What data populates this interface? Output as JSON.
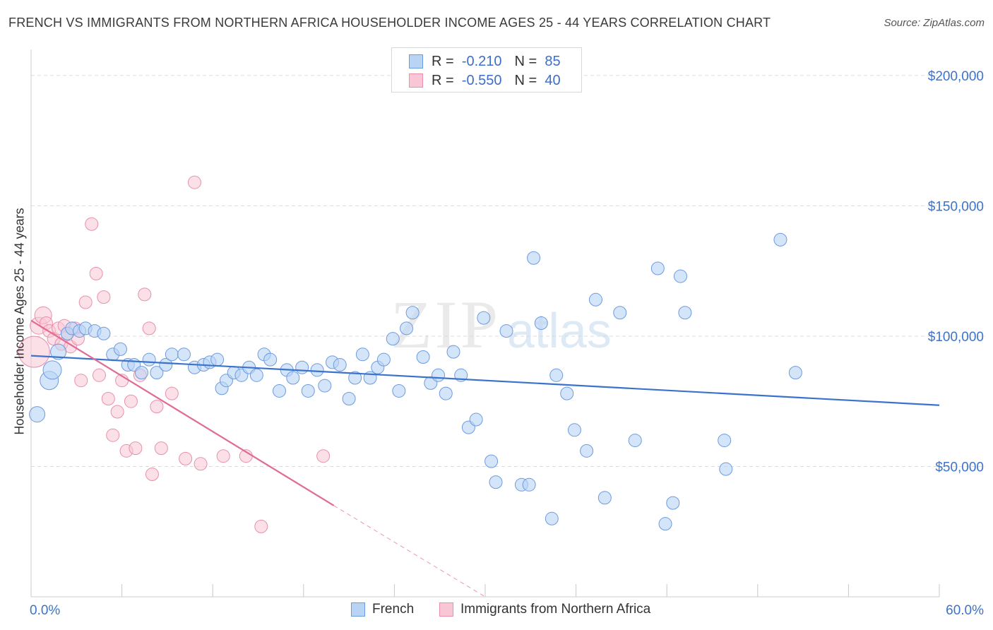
{
  "title": "FRENCH VS IMMIGRANTS FROM NORTHERN AFRICA HOUSEHOLDER INCOME AGES 25 - 44 YEARS CORRELATION CHART",
  "source": "Source: ZipAtlas.com",
  "watermark": {
    "zip": "ZIP",
    "atlas": "atlas"
  },
  "legend": {
    "r_label": "R =",
    "n_label": "N =",
    "rows": [
      {
        "r": "-0.210",
        "n": "85",
        "fill": "#b9d3f5",
        "stroke": "#6b9be0"
      },
      {
        "r": "-0.550",
        "n": "40",
        "fill": "#f9c6d6",
        "stroke": "#e890ab"
      }
    ]
  },
  "bottom_legend": [
    "French",
    "Immigrants from Northern Africa"
  ],
  "chart_data": {
    "type": "scatter",
    "ylabel": "Householder Income Ages 25 - 44 years",
    "xlim": [
      0,
      60
    ],
    "ylim": [
      0,
      210000
    ],
    "x_tick_labels": [
      "0.0%",
      "60.0%"
    ],
    "y_tick_labels": [
      "$200,000",
      "$150,000",
      "$100,000",
      "$50,000"
    ],
    "y_ticks": [
      200000,
      150000,
      100000,
      50000
    ],
    "grid": true,
    "colors": {
      "french": "#3b73cc",
      "french_fill": "#b9d3f5",
      "immig": "#e06b96",
      "immig_fill": "#f9c6d6",
      "axis_text": "#3b73cc"
    },
    "series": [
      {
        "name": "French",
        "points": [
          [
            0.4,
            70000
          ],
          [
            1.2,
            83000
          ],
          [
            1.4,
            87000
          ],
          [
            1.8,
            94000
          ],
          [
            2.4,
            101000
          ],
          [
            2.7,
            103000
          ],
          [
            3.2,
            102000
          ],
          [
            3.6,
            103000
          ],
          [
            4.2,
            102000
          ],
          [
            4.8,
            101000
          ],
          [
            5.4,
            93000
          ],
          [
            5.9,
            95000
          ],
          [
            6.4,
            89000
          ],
          [
            6.8,
            89000
          ],
          [
            7.3,
            86000
          ],
          [
            7.8,
            91000
          ],
          [
            8.3,
            86000
          ],
          [
            8.9,
            89000
          ],
          [
            9.3,
            93000
          ],
          [
            10.1,
            93000
          ],
          [
            10.8,
            88000
          ],
          [
            11.4,
            89000
          ],
          [
            11.8,
            90000
          ],
          [
            12.3,
            91000
          ],
          [
            12.6,
            80000
          ],
          [
            12.9,
            83000
          ],
          [
            13.4,
            86000
          ],
          [
            13.9,
            85000
          ],
          [
            14.4,
            88000
          ],
          [
            14.9,
            85000
          ],
          [
            15.4,
            93000
          ],
          [
            15.8,
            91000
          ],
          [
            16.4,
            79000
          ],
          [
            16.9,
            87000
          ],
          [
            17.3,
            84000
          ],
          [
            17.9,
            88000
          ],
          [
            18.3,
            79000
          ],
          [
            18.9,
            87000
          ],
          [
            19.4,
            81000
          ],
          [
            19.9,
            90000
          ],
          [
            20.4,
            89000
          ],
          [
            21.0,
            76000
          ],
          [
            21.4,
            84000
          ],
          [
            21.9,
            93000
          ],
          [
            22.4,
            84000
          ],
          [
            22.9,
            88000
          ],
          [
            23.3,
            91000
          ],
          [
            23.9,
            99000
          ],
          [
            24.3,
            79000
          ],
          [
            24.8,
            103000
          ],
          [
            25.2,
            109000
          ],
          [
            25.9,
            92000
          ],
          [
            26.4,
            82000
          ],
          [
            26.9,
            85000
          ],
          [
            27.4,
            78000
          ],
          [
            27.9,
            94000
          ],
          [
            28.4,
            85000
          ],
          [
            28.9,
            65000
          ],
          [
            29.4,
            68000
          ],
          [
            29.9,
            107000
          ],
          [
            30.4,
            52000
          ],
          [
            30.7,
            44000
          ],
          [
            31.4,
            102000
          ],
          [
            32.4,
            43000
          ],
          [
            32.9,
            43000
          ],
          [
            33.2,
            130000
          ],
          [
            33.7,
            105000
          ],
          [
            34.4,
            30000
          ],
          [
            34.7,
            85000
          ],
          [
            35.4,
            78000
          ],
          [
            35.9,
            64000
          ],
          [
            36.7,
            56000
          ],
          [
            37.3,
            114000
          ],
          [
            37.9,
            38000
          ],
          [
            38.9,
            109000
          ],
          [
            39.9,
            60000
          ],
          [
            41.4,
            126000
          ],
          [
            41.9,
            28000
          ],
          [
            42.4,
            36000
          ],
          [
            42.9,
            123000
          ],
          [
            43.2,
            109000
          ],
          [
            45.8,
            60000
          ],
          [
            45.9,
            49000
          ],
          [
            49.5,
            137000
          ],
          [
            50.5,
            86000
          ]
        ],
        "trend": {
          "from": [
            0,
            92500
          ],
          "to": [
            60,
            73500
          ]
        }
      },
      {
        "name": "Immigrants from Northern Africa",
        "points": [
          [
            0.2,
            94000
          ],
          [
            0.5,
            104000
          ],
          [
            0.8,
            108000
          ],
          [
            1.0,
            105000
          ],
          [
            1.2,
            102000
          ],
          [
            1.5,
            99000
          ],
          [
            1.8,
            103000
          ],
          [
            2.0,
            97000
          ],
          [
            2.2,
            104000
          ],
          [
            2.4,
            101000
          ],
          [
            2.6,
            96000
          ],
          [
            2.9,
            103000
          ],
          [
            3.1,
            99000
          ],
          [
            3.3,
            83000
          ],
          [
            3.6,
            113000
          ],
          [
            4.0,
            143000
          ],
          [
            4.3,
            124000
          ],
          [
            4.5,
            85000
          ],
          [
            4.8,
            115000
          ],
          [
            5.1,
            76000
          ],
          [
            5.4,
            62000
          ],
          [
            5.7,
            71000
          ],
          [
            6.0,
            83000
          ],
          [
            6.3,
            56000
          ],
          [
            6.6,
            75000
          ],
          [
            6.9,
            57000
          ],
          [
            7.2,
            85000
          ],
          [
            7.5,
            116000
          ],
          [
            7.8,
            103000
          ],
          [
            8.0,
            47000
          ],
          [
            8.3,
            73000
          ],
          [
            8.6,
            57000
          ],
          [
            9.3,
            78000
          ],
          [
            10.2,
            53000
          ],
          [
            10.8,
            159000
          ],
          [
            11.2,
            51000
          ],
          [
            12.7,
            54000
          ],
          [
            14.2,
            54000
          ],
          [
            15.2,
            27000
          ],
          [
            19.3,
            54000
          ]
        ],
        "trend": {
          "from": [
            0,
            106000
          ],
          "to": [
            20,
            35000
          ]
        },
        "trend_dashed": {
          "from": [
            20,
            35000
          ],
          "to": [
            30,
            0
          ]
        }
      }
    ]
  }
}
